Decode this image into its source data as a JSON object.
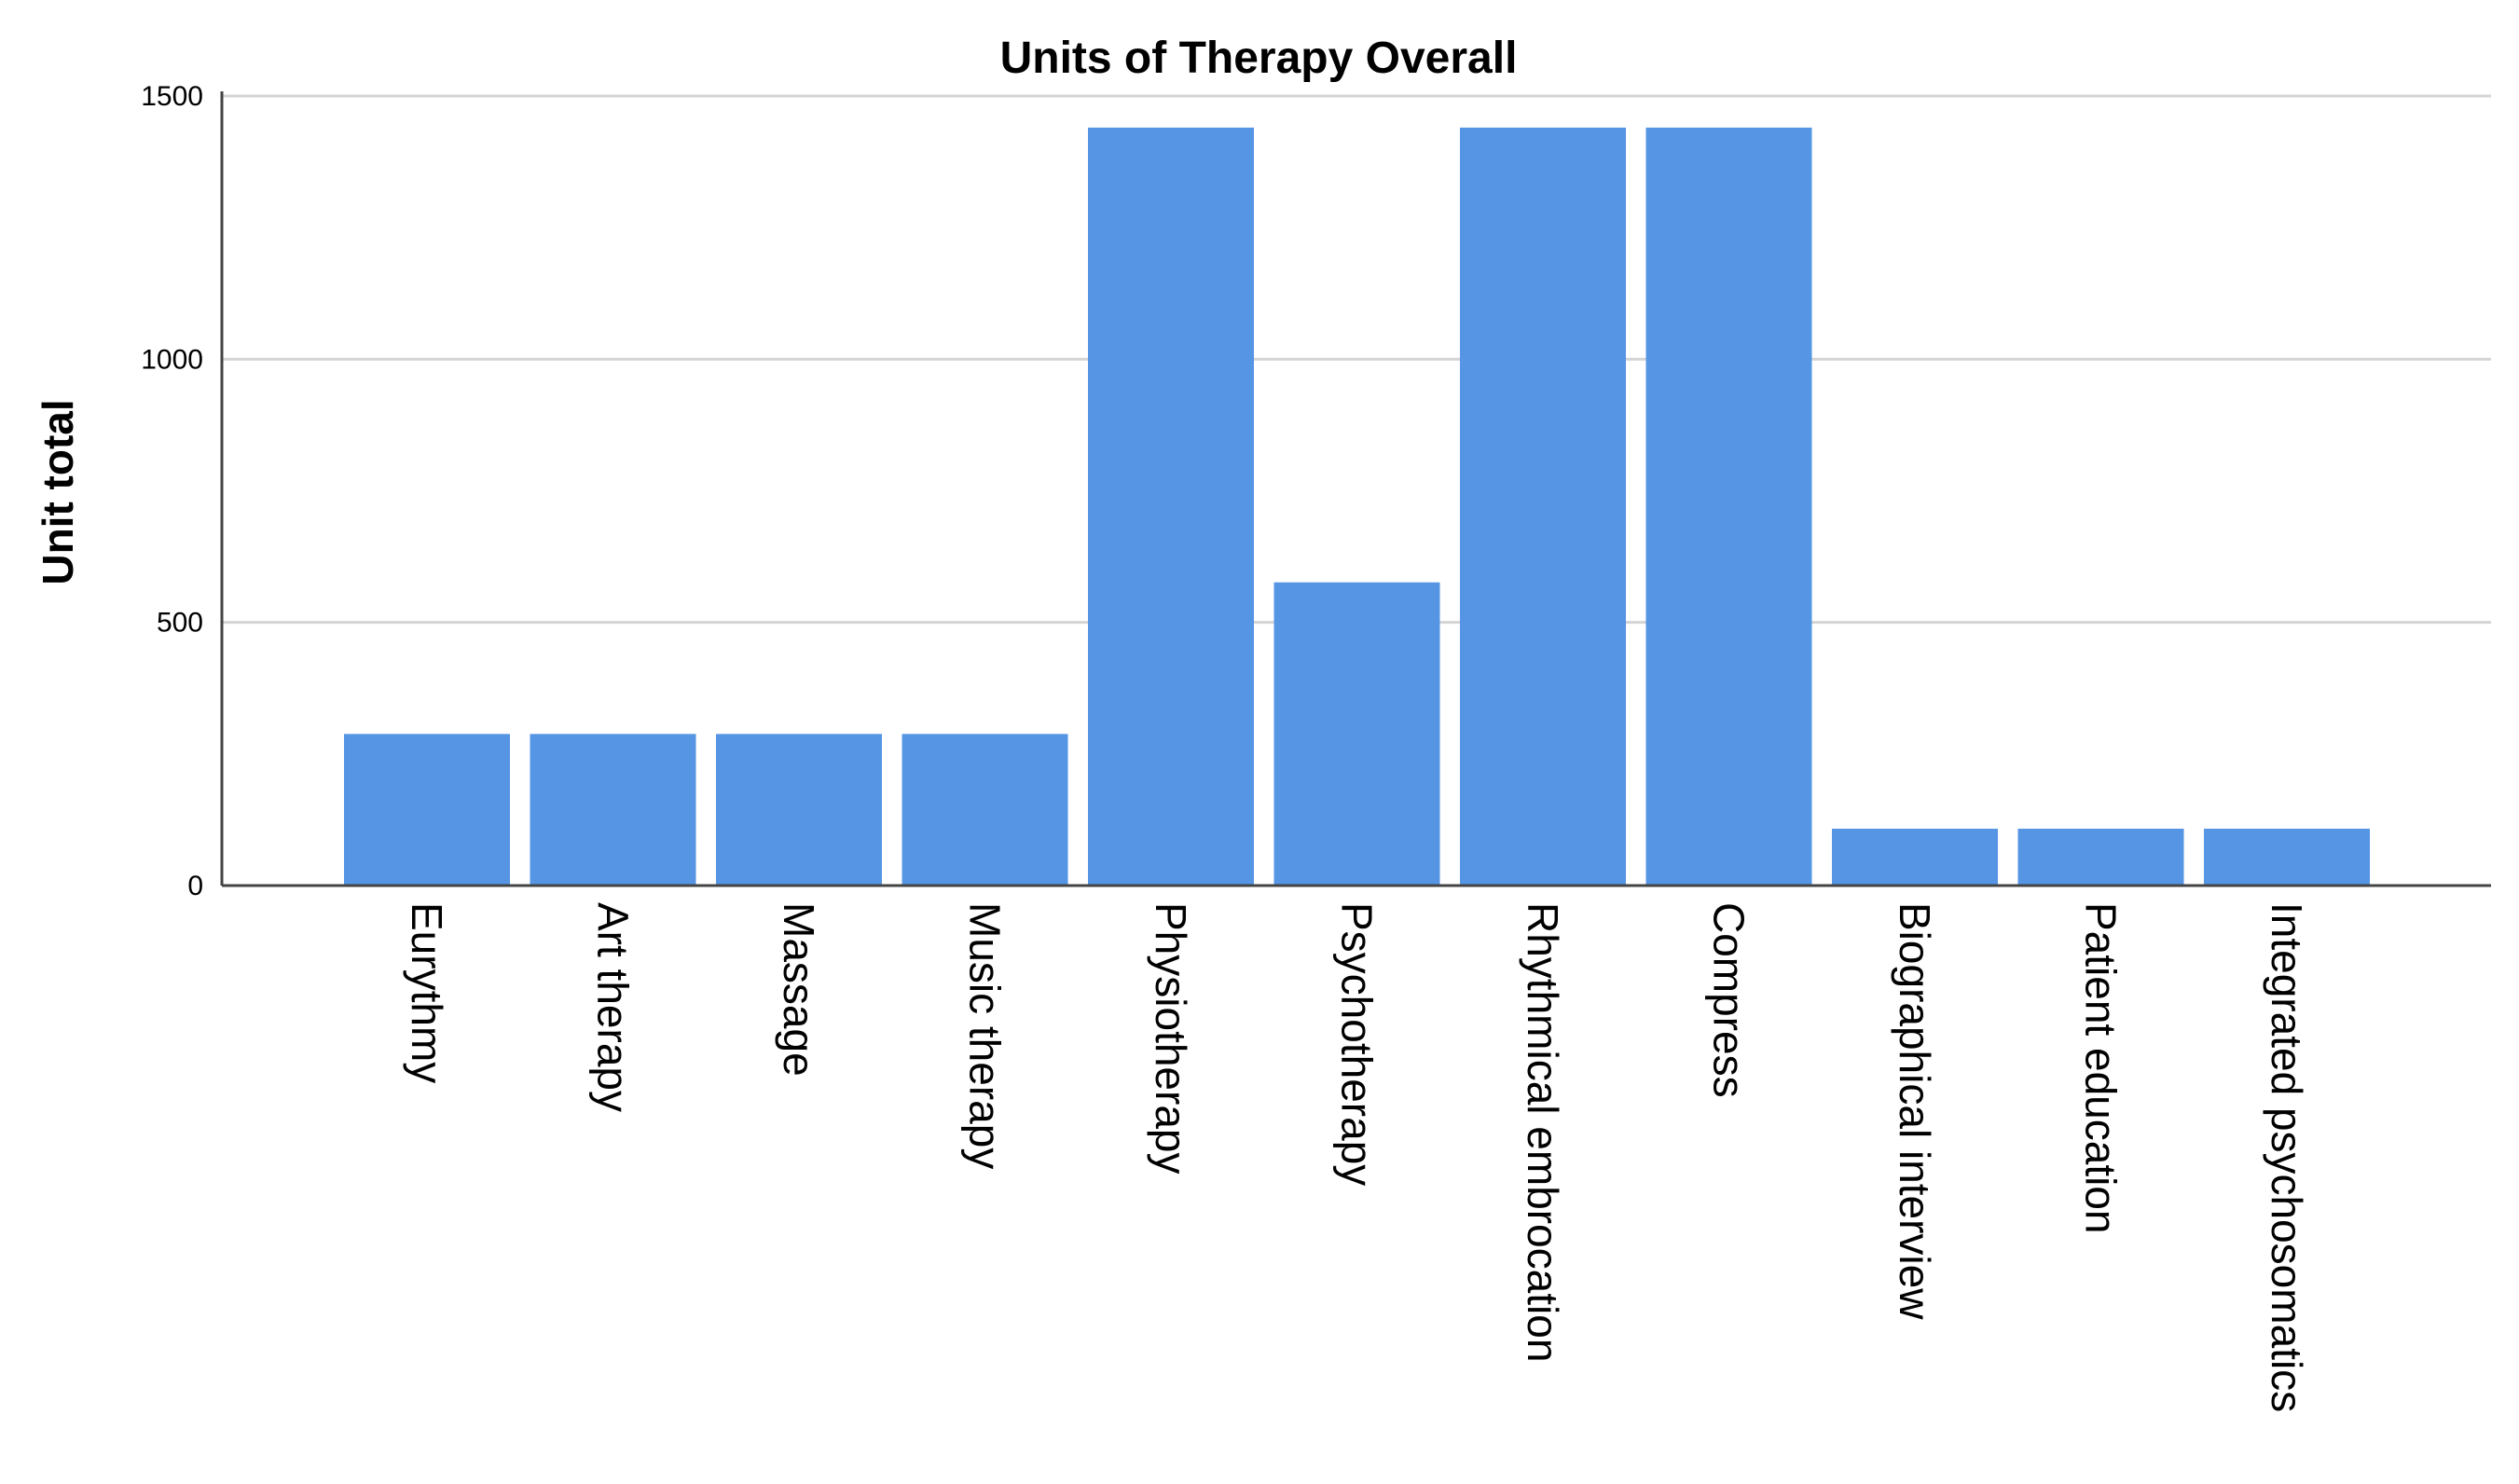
{
  "chart_data": {
    "type": "bar",
    "title": "Units of Therapy Overall",
    "xlabel": "",
    "ylabel": "Unit total",
    "categories": [
      "Eurythmy",
      "Art therapy",
      "Massage",
      "Music therapy",
      "Physiotherapy",
      "Psychotherapy",
      "Rhythmical embrocation",
      "Compress",
      "Biographical interview",
      "Patient education",
      "Integrated psychosomatics"
    ],
    "values": [
      288,
      288,
      288,
      288,
      1440,
      576,
      1440,
      1440,
      108,
      108,
      108
    ],
    "ylim": [
      0,
      1500
    ],
    "yticks": [
      0,
      500,
      1000,
      1500
    ],
    "ytick_labels": [
      "0",
      "500",
      "1000",
      "1500"
    ],
    "grid": true,
    "legend": "none",
    "bar_color": "#5595e3"
  }
}
